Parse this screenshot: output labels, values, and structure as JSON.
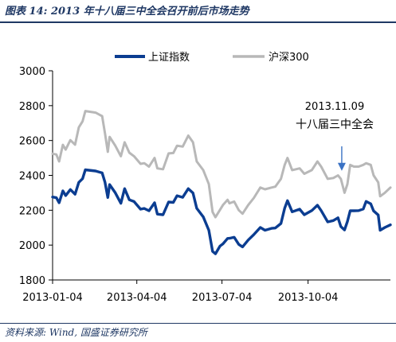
{
  "header": {
    "title": "图表 14: 2013 年十八届三中全会召开前后市场走势"
  },
  "footer": {
    "source": "资料来源: Wind, 国盛证券研究所"
  },
  "chart_data": {
    "type": "line",
    "legend_placement": "top",
    "grid": false,
    "ylim": [
      1800,
      3000
    ],
    "y_ticks": [
      "1800",
      "2000",
      "2200",
      "2400",
      "2600",
      "2800",
      "3000"
    ],
    "x_ticks": [
      "2013-01-04",
      "2013-04-04",
      "2013-07-04",
      "2013-10-04"
    ],
    "xlim": [
      "2013-01-04",
      "2013-12-31"
    ],
    "annotation": {
      "date_label": "2013.11.09",
      "event_label": "十八届三中全会",
      "target_date": "2013-11-09",
      "target_value": 2390
    },
    "series": [
      {
        "name": "上证指数",
        "color": "#0b3d91",
        "points": [
          [
            "2013-01-04",
            2276
          ],
          [
            "2013-01-08",
            2272
          ],
          [
            "2013-01-11",
            2243
          ],
          [
            "2013-01-15",
            2311
          ],
          [
            "2013-01-18",
            2284
          ],
          [
            "2013-01-23",
            2319
          ],
          [
            "2013-01-28",
            2292
          ],
          [
            "2013-02-01",
            2360
          ],
          [
            "2013-02-05",
            2381
          ],
          [
            "2013-02-08",
            2432
          ],
          [
            "2013-02-19",
            2425
          ],
          [
            "2013-02-26",
            2414
          ],
          [
            "2013-03-01",
            2360
          ],
          [
            "2013-03-04",
            2273
          ],
          [
            "2013-03-06",
            2347
          ],
          [
            "2013-03-12",
            2300
          ],
          [
            "2013-03-18",
            2240
          ],
          [
            "2013-03-22",
            2324
          ],
          [
            "2013-03-27",
            2260
          ],
          [
            "2013-04-01",
            2250
          ],
          [
            "2013-04-08",
            2206
          ],
          [
            "2013-04-12",
            2210
          ],
          [
            "2013-04-17",
            2197
          ],
          [
            "2013-04-23",
            2243
          ],
          [
            "2013-04-26",
            2178
          ],
          [
            "2013-05-02",
            2174
          ],
          [
            "2013-05-08",
            2247
          ],
          [
            "2013-05-13",
            2245
          ],
          [
            "2013-05-17",
            2283
          ],
          [
            "2013-05-23",
            2274
          ],
          [
            "2013-05-29",
            2324
          ],
          [
            "2013-06-03",
            2299
          ],
          [
            "2013-06-07",
            2211
          ],
          [
            "2013-06-14",
            2162
          ],
          [
            "2013-06-20",
            2085
          ],
          [
            "2013-06-24",
            1964
          ],
          [
            "2013-06-27",
            1950
          ],
          [
            "2013-07-02",
            1995
          ],
          [
            "2013-07-05",
            2007
          ],
          [
            "2013-07-10",
            2038
          ],
          [
            "2013-07-12",
            2039
          ],
          [
            "2013-07-17",
            2045
          ],
          [
            "2013-07-22",
            2004
          ],
          [
            "2013-07-26",
            1990
          ],
          [
            "2013-08-01",
            2029
          ],
          [
            "2013-08-07",
            2060
          ],
          [
            "2013-08-14",
            2101
          ],
          [
            "2013-08-19",
            2085
          ],
          [
            "2013-08-26",
            2096
          ],
          [
            "2013-08-30",
            2098
          ],
          [
            "2013-09-05",
            2124
          ],
          [
            "2013-09-09",
            2212
          ],
          [
            "2013-09-12",
            2255
          ],
          [
            "2013-09-17",
            2191
          ],
          [
            "2013-09-25",
            2206
          ],
          [
            "2013-09-30",
            2174
          ],
          [
            "2013-10-08",
            2198
          ],
          [
            "2013-10-14",
            2229
          ],
          [
            "2013-10-18",
            2198
          ],
          [
            "2013-10-25",
            2133
          ],
          [
            "2013-10-31",
            2141
          ],
          [
            "2013-11-05",
            2157
          ],
          [
            "2013-11-08",
            2106
          ],
          [
            "2013-11-12",
            2087
          ],
          [
            "2013-11-15",
            2135
          ],
          [
            "2013-11-18",
            2197
          ],
          [
            "2013-11-22",
            2197
          ],
          [
            "2013-11-27",
            2198
          ],
          [
            "2013-12-02",
            2207
          ],
          [
            "2013-12-05",
            2251
          ],
          [
            "2013-12-10",
            2237
          ],
          [
            "2013-12-13",
            2196
          ],
          [
            "2013-12-18",
            2173
          ],
          [
            "2013-12-20",
            2085
          ],
          [
            "2013-12-25",
            2101
          ],
          [
            "2013-12-31",
            2116
          ]
        ]
      },
      {
        "name": "沪深300",
        "color": "#b8b8b8",
        "points": [
          [
            "2013-01-04",
            2524
          ],
          [
            "2013-01-08",
            2520
          ],
          [
            "2013-01-11",
            2480
          ],
          [
            "2013-01-15",
            2575
          ],
          [
            "2013-01-18",
            2548
          ],
          [
            "2013-01-23",
            2602
          ],
          [
            "2013-01-28",
            2576
          ],
          [
            "2013-02-01",
            2675
          ],
          [
            "2013-02-05",
            2710
          ],
          [
            "2013-02-08",
            2769
          ],
          [
            "2013-02-19",
            2760
          ],
          [
            "2013-02-26",
            2740
          ],
          [
            "2013-03-01",
            2640
          ],
          [
            "2013-03-04",
            2535
          ],
          [
            "2013-03-06",
            2621
          ],
          [
            "2013-03-12",
            2570
          ],
          [
            "2013-03-18",
            2510
          ],
          [
            "2013-03-22",
            2590
          ],
          [
            "2013-03-27",
            2530
          ],
          [
            "2013-04-01",
            2510
          ],
          [
            "2013-04-08",
            2466
          ],
          [
            "2013-04-12",
            2470
          ],
          [
            "2013-04-17",
            2450
          ],
          [
            "2013-04-23",
            2500
          ],
          [
            "2013-04-26",
            2440
          ],
          [
            "2013-05-02",
            2435
          ],
          [
            "2013-05-08",
            2526
          ],
          [
            "2013-05-13",
            2528
          ],
          [
            "2013-05-17",
            2570
          ],
          [
            "2013-05-23",
            2565
          ],
          [
            "2013-05-29",
            2628
          ],
          [
            "2013-06-03",
            2590
          ],
          [
            "2013-06-07",
            2480
          ],
          [
            "2013-06-14",
            2430
          ],
          [
            "2013-06-20",
            2350
          ],
          [
            "2013-06-24",
            2190
          ],
          [
            "2013-06-27",
            2160
          ],
          [
            "2013-07-02",
            2203
          ],
          [
            "2013-07-05",
            2230
          ],
          [
            "2013-07-10",
            2260
          ],
          [
            "2013-07-12",
            2240
          ],
          [
            "2013-07-17",
            2250
          ],
          [
            "2013-07-22",
            2200
          ],
          [
            "2013-07-26",
            2180
          ],
          [
            "2013-08-01",
            2230
          ],
          [
            "2013-08-07",
            2270
          ],
          [
            "2013-08-14",
            2330
          ],
          [
            "2013-08-19",
            2320
          ],
          [
            "2013-08-26",
            2330
          ],
          [
            "2013-08-30",
            2335
          ],
          [
            "2013-09-05",
            2380
          ],
          [
            "2013-09-09",
            2460
          ],
          [
            "2013-09-12",
            2500
          ],
          [
            "2013-09-17",
            2430
          ],
          [
            "2013-09-25",
            2440
          ],
          [
            "2013-09-30",
            2409
          ],
          [
            "2013-10-08",
            2430
          ],
          [
            "2013-10-14",
            2480
          ],
          [
            "2013-10-18",
            2450
          ],
          [
            "2013-10-25",
            2380
          ],
          [
            "2013-10-31",
            2385
          ],
          [
            "2013-11-05",
            2400
          ],
          [
            "2013-11-08",
            2380
          ],
          [
            "2013-11-12",
            2300
          ],
          [
            "2013-11-15",
            2350
          ],
          [
            "2013-11-18",
            2460
          ],
          [
            "2013-11-22",
            2450
          ],
          [
            "2013-11-27",
            2450
          ],
          [
            "2013-12-02",
            2460
          ],
          [
            "2013-12-05",
            2470
          ],
          [
            "2013-12-10",
            2460
          ],
          [
            "2013-12-13",
            2400
          ],
          [
            "2013-12-18",
            2360
          ],
          [
            "2013-12-20",
            2280
          ],
          [
            "2013-12-25",
            2300
          ],
          [
            "2013-12-31",
            2330
          ]
        ]
      }
    ]
  }
}
